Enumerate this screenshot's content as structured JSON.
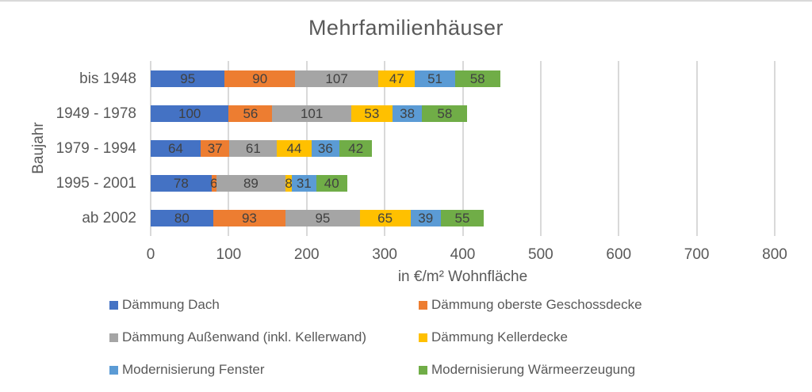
{
  "chart_data": {
    "type": "bar",
    "orientation": "horizontal",
    "stacked": true,
    "title": "Mehrfamilienhäuser",
    "categories": [
      "bis 1948",
      "1949 - 1978",
      "1979 - 1994",
      "1995 - 2001",
      "ab 2002"
    ],
    "series": [
      {
        "name": "Dämmung Dach",
        "color": "#4472C4",
        "values": [
          95,
          100,
          64,
          78,
          80
        ]
      },
      {
        "name": "Dämmung oberste Geschossdecke",
        "color": "#ED7D31",
        "values": [
          90,
          56,
          37,
          6,
          93
        ]
      },
      {
        "name": "Dämmung Außenwand (inkl. Kellerwand)",
        "color": "#A5A5A5",
        "values": [
          107,
          101,
          61,
          89,
          95
        ]
      },
      {
        "name": "Dämmung Kellerdecke",
        "color": "#FFC000",
        "values": [
          47,
          53,
          44,
          8,
          65
        ]
      },
      {
        "name": "Modernisierung Fenster",
        "color": "#5B9BD5",
        "values": [
          51,
          38,
          36,
          31,
          39
        ]
      },
      {
        "name": "Modernisierung Wärmeerzeugung",
        "color": "#70AD47",
        "values": [
          58,
          58,
          42,
          40,
          55
        ]
      }
    ],
    "xlabel": "in €/m² Wohnfläche",
    "ylabel": "Baujahr",
    "xlim": [
      0,
      800
    ],
    "xticks": [
      0,
      100,
      200,
      300,
      400,
      500,
      600,
      700,
      800
    ],
    "grid": true,
    "grid_color": "#d9d9d9",
    "text_color": "#595959",
    "data_label_color": "#404040",
    "legend_position": "bottom"
  }
}
